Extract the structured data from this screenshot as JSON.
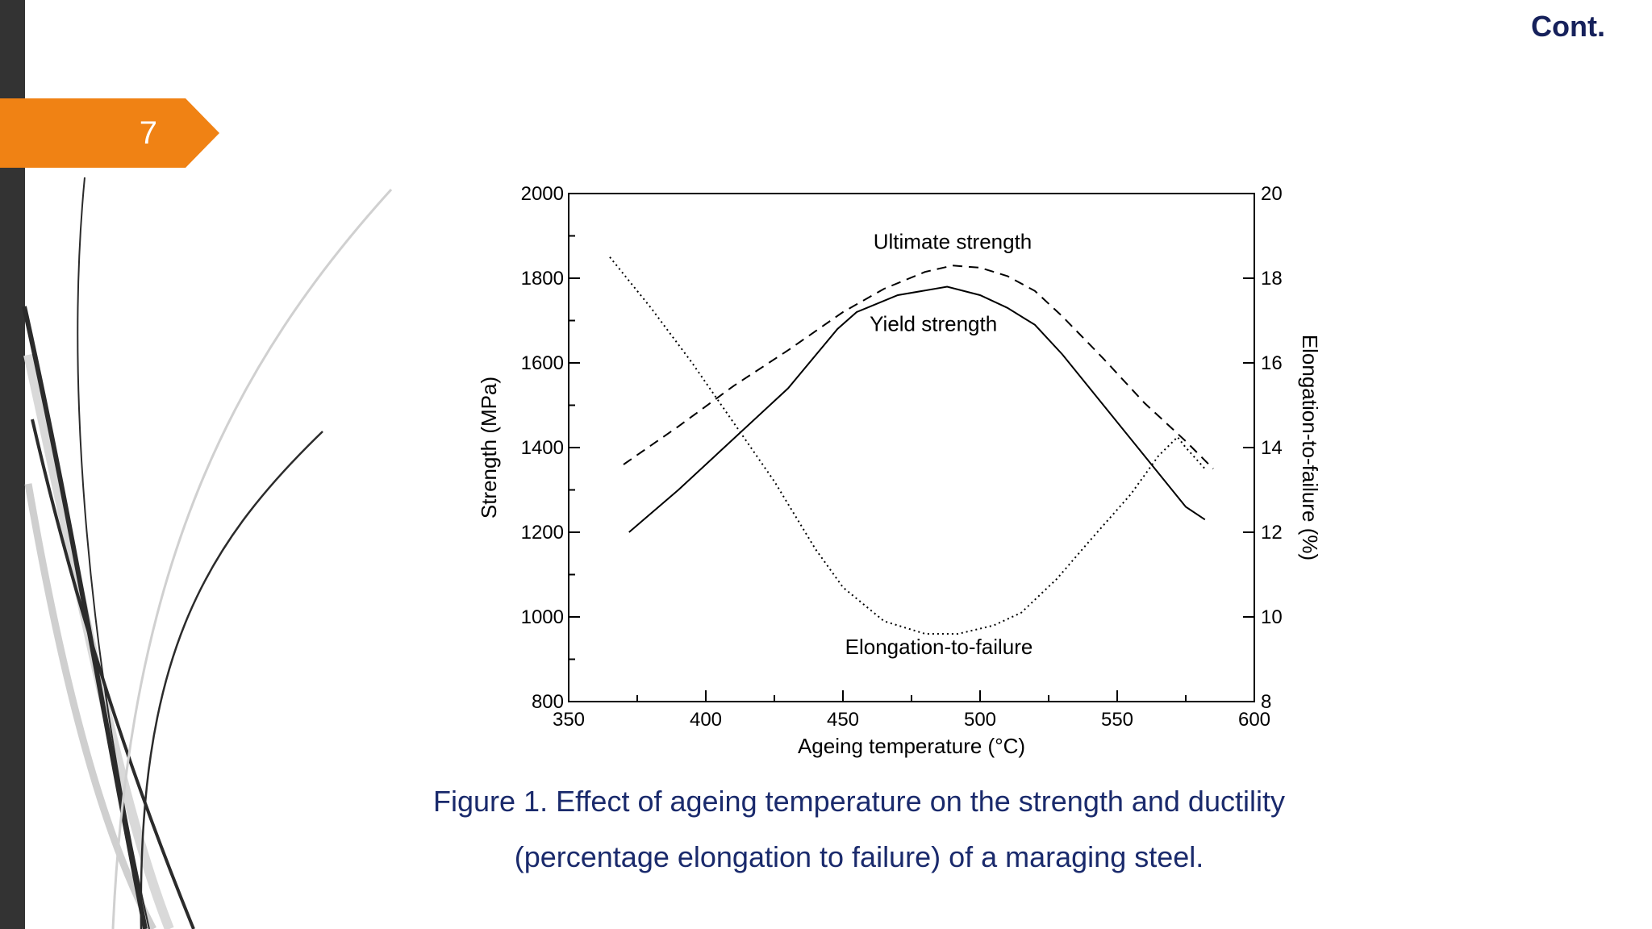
{
  "slide": {
    "page_number": "7",
    "header_label": "Cont.",
    "caption_line_1": "Figure 1. Effect of ageing temperature on the strength and ductility",
    "caption_line_2": "(percentage elongation to failure) of a maraging steel."
  },
  "colors": {
    "accent": "#f08214",
    "left_bar": "#333333",
    "caption_text": "#1a2a6c",
    "header_text": "#16215b"
  },
  "chart_data": {
    "type": "line",
    "xlabel": "Ageing temperature (°C)",
    "ylabel": "Strength (MPa)",
    "y2label": "Elongation-to-failure (%)",
    "xlim": [
      350,
      600
    ],
    "ylim": [
      800,
      2000
    ],
    "y2lim": [
      8,
      20
    ],
    "x_ticks": [
      "350",
      "400",
      "450",
      "500",
      "550",
      "600"
    ],
    "y_ticks": [
      "800",
      "1000",
      "1200",
      "1400",
      "1600",
      "1800",
      "2000"
    ],
    "y2_ticks": [
      "8",
      "10",
      "12",
      "14",
      "16",
      "18",
      "20"
    ],
    "grid": false,
    "series": [
      {
        "name": "Ultimate strength",
        "axis": "left",
        "style": "dashed",
        "points": [
          [
            370,
            1360
          ],
          [
            390,
            1450
          ],
          [
            410,
            1545
          ],
          [
            430,
            1630
          ],
          [
            450,
            1720
          ],
          [
            465,
            1775
          ],
          [
            480,
            1815
          ],
          [
            490,
            1830
          ],
          [
            500,
            1825
          ],
          [
            510,
            1805
          ],
          [
            520,
            1770
          ],
          [
            530,
            1710
          ],
          [
            545,
            1610
          ],
          [
            560,
            1505
          ],
          [
            575,
            1415
          ],
          [
            585,
            1350
          ]
        ]
      },
      {
        "name": "Yield strength",
        "axis": "left",
        "style": "solid",
        "points": [
          [
            372,
            1200
          ],
          [
            390,
            1300
          ],
          [
            410,
            1420
          ],
          [
            430,
            1540
          ],
          [
            448,
            1680
          ],
          [
            455,
            1720
          ],
          [
            470,
            1760
          ],
          [
            488,
            1780
          ],
          [
            500,
            1760
          ],
          [
            510,
            1730
          ],
          [
            520,
            1690
          ],
          [
            530,
            1620
          ],
          [
            545,
            1500
          ],
          [
            560,
            1380
          ],
          [
            575,
            1260
          ],
          [
            582,
            1230
          ]
        ]
      },
      {
        "name": "Elongation-to-failure",
        "axis": "right",
        "style": "dotted",
        "points": [
          [
            365,
            18.5
          ],
          [
            380,
            17.3
          ],
          [
            395,
            16.0
          ],
          [
            410,
            14.6
          ],
          [
            425,
            13.2
          ],
          [
            440,
            11.6
          ],
          [
            450,
            10.7
          ],
          [
            465,
            9.9
          ],
          [
            480,
            9.6
          ],
          [
            492,
            9.6
          ],
          [
            505,
            9.8
          ],
          [
            515,
            10.1
          ],
          [
            528,
            10.9
          ],
          [
            540,
            11.8
          ],
          [
            555,
            12.9
          ],
          [
            565,
            13.8
          ],
          [
            572,
            14.25
          ],
          [
            575,
            14.0
          ],
          [
            582,
            13.5
          ]
        ]
      }
    ],
    "annotations": [
      {
        "text": "Ultimate strength",
        "x": 490,
        "y": 1870
      },
      {
        "text": "Yield strength",
        "x": 483,
        "y": 1675
      },
      {
        "text": "Elongation-to-failure",
        "x": 485,
        "y": 912
      }
    ]
  }
}
